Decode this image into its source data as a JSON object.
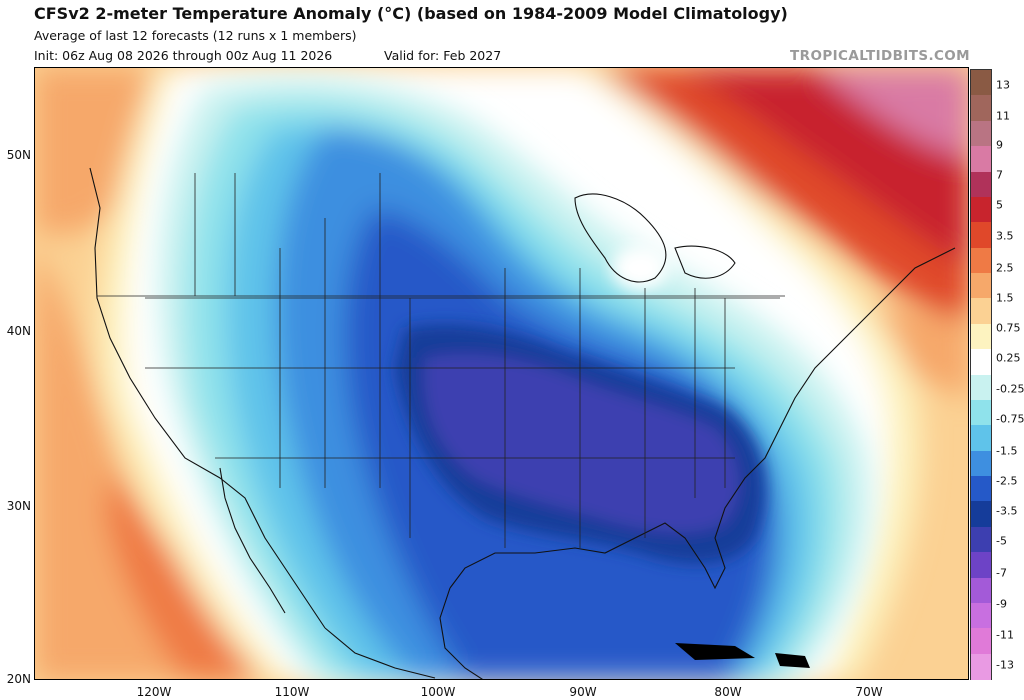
{
  "header": {
    "title": "CFSv2 2-meter Temperature Anomaly (°C) (based on 1984-2009 Model Climatology)",
    "subtitle": "Average of last 12 forecasts (12 runs x 1 members)",
    "init": "Init: 06z Aug 08 2026 through 00z Aug 11 2026",
    "valid": "Valid for: Feb 2027",
    "brand": "TROPICALTIDBITS.COM"
  },
  "map": {
    "lat_labels": [
      "50N",
      "40N",
      "30N",
      "20N"
    ],
    "lon_labels": [
      "120W",
      "110W",
      "100W",
      "90W",
      "80W",
      "70W"
    ],
    "extent": {
      "lon_min": -128,
      "lon_max": -64,
      "lat_min": 20,
      "lat_max": 55
    }
  },
  "colorbar": {
    "labels": [
      "13",
      "11",
      "9",
      "7",
      "5",
      "3.5",
      "2.5",
      "1.5",
      "0.75",
      "0.25",
      "-0.25",
      "-0.75",
      "-1.5",
      "-2.5",
      "-3.5",
      "-5",
      "-7",
      "-9",
      "-11",
      "-13"
    ],
    "colors": [
      "#8a5a44",
      "#a0665c",
      "#b97483",
      "#d97aa4",
      "#b0325a",
      "#c8242d",
      "#e0482a",
      "#ef7a45",
      "#f6a86a",
      "#fbd193",
      "#fdf3c0",
      "#ffffff",
      "#c9f2f0",
      "#8fe2eb",
      "#5fc3ea",
      "#3e8fe0",
      "#2559c8",
      "#153c9a",
      "#3d3fb0",
      "#6d43c6",
      "#a35ad8",
      "#c86fe0",
      "#e07ad8",
      "#e99ae3"
    ]
  },
  "chart_data": {
    "type": "heatmap",
    "title": "CFSv2 2-meter Temperature Anomaly (°C) (based on 1984-2009 Model Climatology)",
    "units": "°C",
    "levels": [
      -13,
      -11,
      -9,
      -7,
      -5,
      -3.5,
      -2.5,
      -1.5,
      -0.75,
      -0.25,
      0.25,
      0.75,
      1.5,
      2.5,
      3.5,
      5,
      7,
      9,
      11,
      13
    ],
    "x_range": [
      -128,
      -64
    ],
    "y_range": [
      20,
      55
    ]
  }
}
